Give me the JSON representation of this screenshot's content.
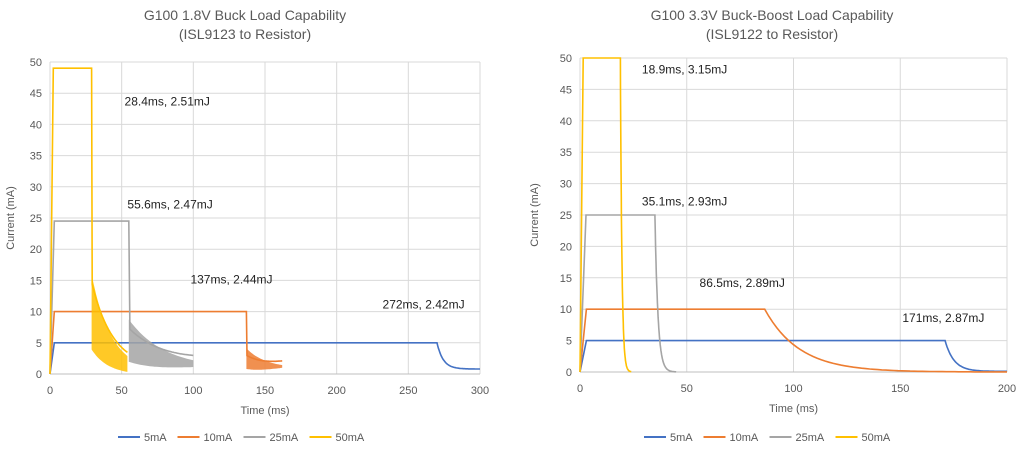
{
  "chart_data": [
    {
      "type": "line",
      "title": "G100 1.8V Buck Load Capability",
      "subtitle": "(ISL9123 to Resistor)",
      "xlabel": "Time (ms)",
      "ylabel": "Current (mA)",
      "xlim": [
        0,
        300
      ],
      "ylim": [
        0,
        50
      ],
      "xticks": [
        0,
        50,
        100,
        150,
        200,
        250,
        300
      ],
      "yticks": [
        0,
        5,
        10,
        15,
        20,
        25,
        30,
        35,
        40,
        45,
        50
      ],
      "grid": true,
      "legend_position": "bottom",
      "series": [
        {
          "name": "5mA",
          "color": "#4472C4",
          "level": 5,
          "end_ms": 270,
          "tail_end_ms": 300,
          "tail_end_value": 0.8,
          "noisy": false
        },
        {
          "name": "10mA",
          "color": "#ED7D31",
          "level": 10,
          "end_ms": 137,
          "tail_end_ms": 162,
          "tail_end_value": 1.5,
          "noisy": true
        },
        {
          "name": "25mA",
          "color": "#A5A5A5",
          "level": 24.5,
          "end_ms": 55,
          "tail_end_ms": 100,
          "tail_end_value": 1.5,
          "noisy": true
        },
        {
          "name": "50mA",
          "color": "#FFC000",
          "level": 49,
          "end_ms": 29,
          "tail_end_ms": 54,
          "tail_end_value": 0.5,
          "noisy": true
        }
      ],
      "annotations": [
        {
          "text": "28.4ms, 2.51mJ",
          "x": 52,
          "y": 43
        },
        {
          "text": "55.6ms, 2.47mJ",
          "x": 54,
          "y": 26.5
        },
        {
          "text": "137ms, 2.44mJ",
          "x": 98,
          "y": 14.5
        },
        {
          "text": "272ms, 2.42mJ",
          "x": 232,
          "y": 10.5
        }
      ]
    },
    {
      "type": "line",
      "title": "G100 3.3V Buck-Boost Load Capability",
      "subtitle": "(ISL9122 to Resistor)",
      "xlabel": "Time (ms)",
      "ylabel": "Current (mA)",
      "xlim": [
        0,
        200
      ],
      "ylim": [
        0,
        50
      ],
      "xticks": [
        0,
        50,
        100,
        150,
        200
      ],
      "yticks": [
        0,
        5,
        10,
        15,
        20,
        25,
        30,
        35,
        40,
        45,
        50
      ],
      "grid": true,
      "legend_position": "bottom",
      "series": [
        {
          "name": "5mA",
          "color": "#4472C4",
          "level": 5,
          "end_ms": 171,
          "tail_end_ms": 200,
          "tail_end_value": 0.1,
          "noisy": false
        },
        {
          "name": "10mA",
          "color": "#ED7D31",
          "level": 10,
          "end_ms": 86.5,
          "tail_end_ms": 200,
          "tail_end_value": 0,
          "noisy": false
        },
        {
          "name": "25mA",
          "color": "#A5A5A5",
          "level": 25,
          "end_ms": 35.1,
          "tail_end_ms": 45,
          "tail_end_value": 0,
          "noisy": false
        },
        {
          "name": "50mA",
          "color": "#FFC000",
          "level": 50,
          "end_ms": 18.9,
          "tail_end_ms": 24,
          "tail_end_value": 0,
          "noisy": false
        }
      ],
      "annotations": [
        {
          "text": "18.9ms, 3.15mJ",
          "x": 29,
          "y": 47.5
        },
        {
          "text": "35.1ms, 2.93mJ",
          "x": 29,
          "y": 26.5
        },
        {
          "text": "86.5ms, 2.89mJ",
          "x": 56,
          "y": 13.5
        },
        {
          "text": "171ms, 2.87mJ",
          "x": 151,
          "y": 8
        }
      ]
    }
  ]
}
